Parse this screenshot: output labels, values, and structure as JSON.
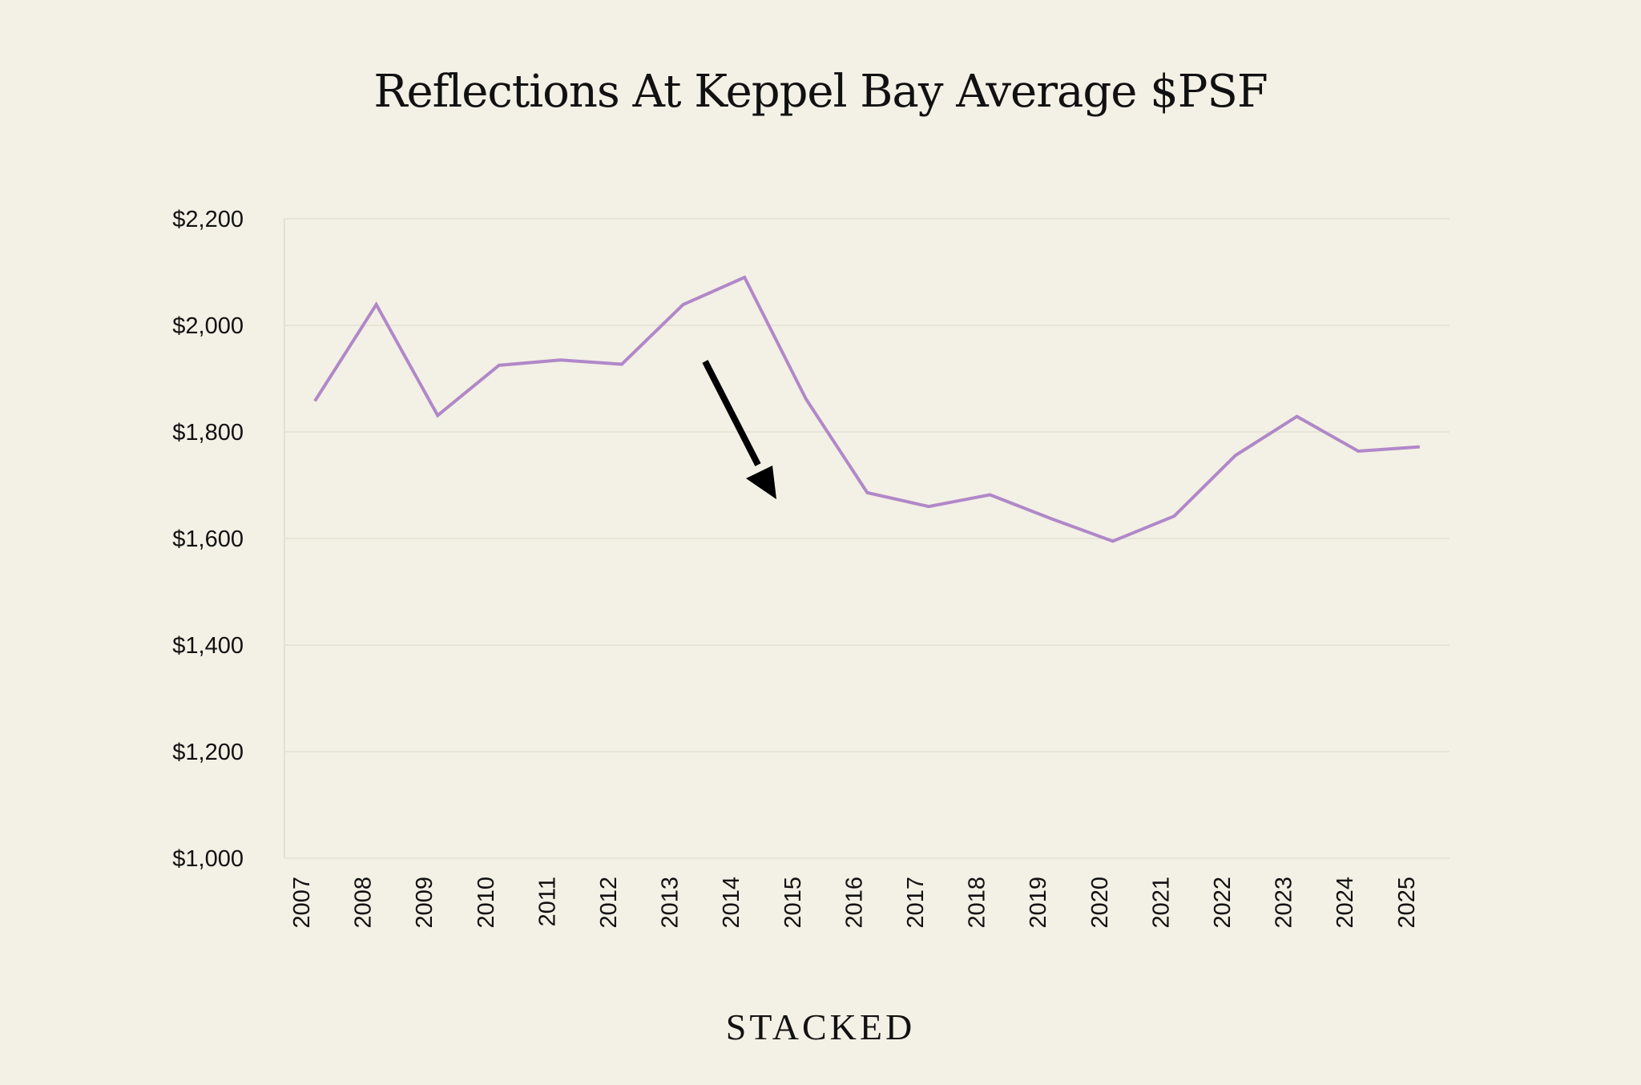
{
  "chart_data": {
    "type": "line",
    "title": "Reflections At Keppel Bay Average $PSF",
    "xlabel": "",
    "ylabel": "",
    "categories": [
      "2007",
      "2008",
      "2009",
      "2010",
      "2011",
      "2012",
      "2013",
      "2014",
      "2015",
      "2016",
      "2017",
      "2018",
      "2019",
      "2020",
      "2021",
      "2022",
      "2023",
      "2024",
      "2025"
    ],
    "series": [
      {
        "values": [
          1858,
          2039,
          1831,
          1925,
          1935,
          1927,
          2039,
          2090,
          1862,
          1686,
          1660,
          1682,
          1637,
          1595,
          1642,
          1756,
          1829,
          1764,
          1772
        ],
        "color": "#b088c8"
      }
    ],
    "ylim": [
      1000,
      2200
    ],
    "yticks": [
      1000,
      1200,
      1400,
      1600,
      1800,
      2000,
      2200
    ],
    "ytick_labels": [
      "$1,000",
      "$1,200",
      "$1,400",
      "$1,600",
      "$1,800",
      "$2,000",
      "$2,200"
    ],
    "grid": "horizontal",
    "annotations": [
      {
        "type": "arrow",
        "direction": "down",
        "from_year": "2013",
        "to_year": "2015",
        "color": "#000000"
      }
    ]
  },
  "brand": "STACKED",
  "colors": {
    "background": "#f3f0e5",
    "line": "#b088c8",
    "grid": "#e3dfd3"
  }
}
